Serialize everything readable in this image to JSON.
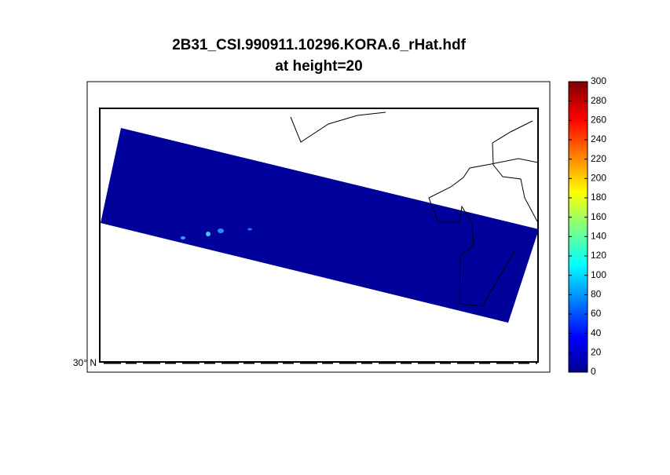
{
  "title": [
    "2B31_CSI.990911.10296.KORA.6_rHat.hdf",
    "at height=20"
  ],
  "latitude_label": "30° N",
  "colorbar": {
    "lim": [
      0,
      300
    ],
    "ticks": [
      0,
      20,
      40,
      60,
      80,
      100,
      120,
      140,
      160,
      180,
      200,
      220,
      240,
      260,
      280,
      300
    ]
  }
}
